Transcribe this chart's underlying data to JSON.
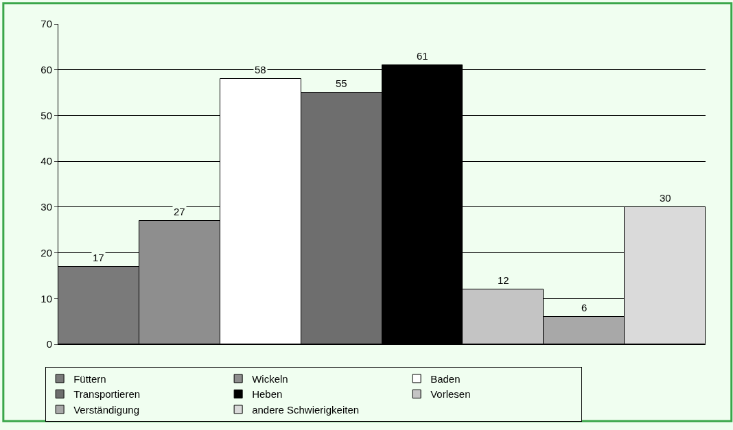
{
  "chart_data": {
    "type": "bar",
    "categories": [
      null,
      null,
      null,
      null,
      null,
      null,
      null,
      null
    ],
    "series": [
      {
        "name": "Füttern",
        "color": "#7a7a7a",
        "values": [
          17,
          null,
          null,
          null,
          null,
          null,
          null,
          null
        ]
      },
      {
        "name": "Wickeln",
        "color": "#8e8e8e",
        "values": [
          null,
          27,
          null,
          null,
          null,
          null,
          null,
          null
        ]
      },
      {
        "name": "Baden",
        "color": "#ffffff",
        "values": [
          null,
          null,
          58,
          null,
          null,
          null,
          null,
          null
        ]
      },
      {
        "name": "Transportieren",
        "color": "#6e6e6e",
        "values": [
          null,
          null,
          null,
          55,
          null,
          null,
          null,
          null
        ]
      },
      {
        "name": "Heben",
        "color": "#000000",
        "values": [
          null,
          null,
          null,
          null,
          61,
          null,
          null,
          null
        ]
      },
      {
        "name": "Vorlesen",
        "color": "#c4c4c4",
        "values": [
          null,
          null,
          null,
          null,
          null,
          12,
          null,
          null
        ]
      },
      {
        "name": "Verständigung",
        "color": "#a8a8a8",
        "values": [
          null,
          null,
          null,
          null,
          null,
          null,
          6,
          null
        ]
      },
      {
        "name": "andere Schwierigkeiten",
        "color": "#dadada",
        "values": [
          null,
          null,
          null,
          null,
          null,
          null,
          null,
          30
        ]
      }
    ],
    "ylim": [
      0,
      70
    ],
    "yticks": [
      0,
      10,
      20,
      30,
      40,
      50,
      60,
      70
    ],
    "grid": "y",
    "legend": "bottom",
    "data_labels": true,
    "tick_labels": "y"
  }
}
